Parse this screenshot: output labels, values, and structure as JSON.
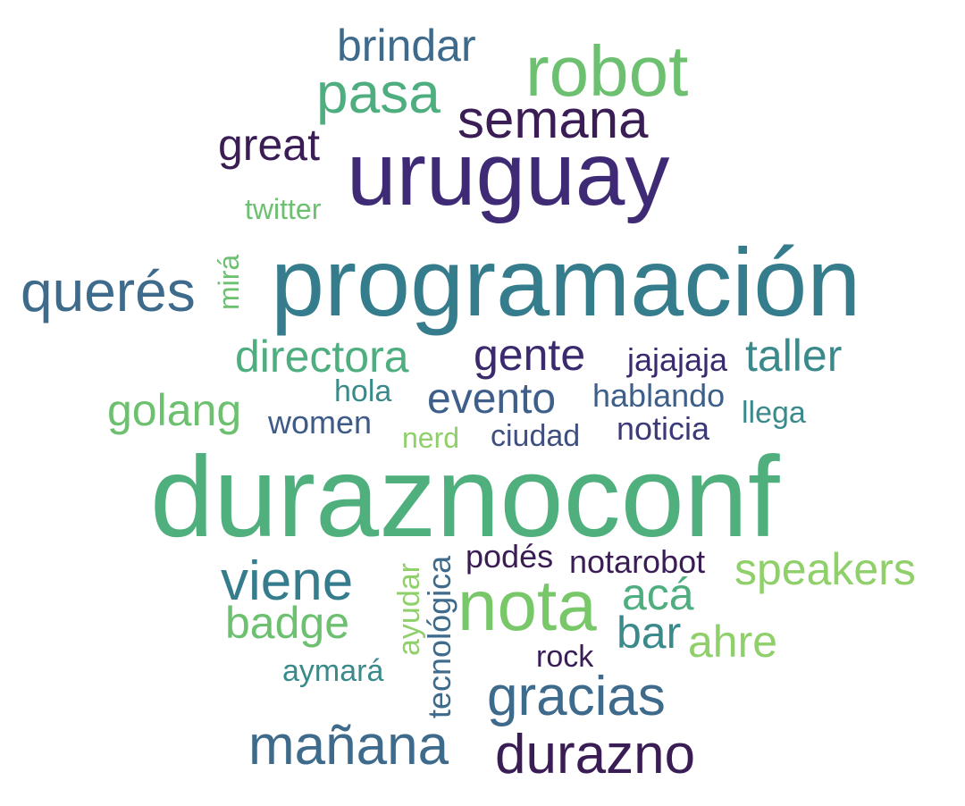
{
  "words": [
    {
      "text": "duraznoconf",
      "color": "#4fb07e"
    },
    {
      "text": "programación",
      "color": "#357c8c"
    },
    {
      "text": "uruguay",
      "color": "#3f2b75"
    },
    {
      "text": "nota",
      "color": "#78c86a"
    },
    {
      "text": "robot",
      "color": "#6cc070"
    },
    {
      "text": "semana",
      "color": "#3b1d55"
    },
    {
      "text": "pasa",
      "color": "#4fae80"
    },
    {
      "text": "brindar",
      "color": "#3e6a8c"
    },
    {
      "text": "great",
      "color": "#3b1d55"
    },
    {
      "text": "twitter",
      "color": "#6cc070"
    },
    {
      "text": "querés",
      "color": "#3e6a8c"
    },
    {
      "text": "mirá",
      "color": "#6cc070"
    },
    {
      "text": "directora",
      "color": "#4fae80"
    },
    {
      "text": "gente",
      "color": "#3b2a6d"
    },
    {
      "text": "jajajaja",
      "color": "#3b2a6d"
    },
    {
      "text": "taller",
      "color": "#3a8a8c"
    },
    {
      "text": "golang",
      "color": "#6cc070"
    },
    {
      "text": "hola",
      "color": "#3a8a8c"
    },
    {
      "text": "evento",
      "color": "#3e5f8a"
    },
    {
      "text": "hablando",
      "color": "#3e5f8a"
    },
    {
      "text": "llega",
      "color": "#3a8a8c"
    },
    {
      "text": "women",
      "color": "#3e5a86"
    },
    {
      "text": "nerd",
      "color": "#8fd06a"
    },
    {
      "text": "ciudad",
      "color": "#3e4f80"
    },
    {
      "text": "noticia",
      "color": "#3b3a78"
    },
    {
      "text": "viene",
      "color": "#357c8c"
    },
    {
      "text": "badge",
      "color": "#6cc070"
    },
    {
      "text": "ayudar",
      "color": "#8fd06a"
    },
    {
      "text": "tecnológica",
      "color": "#3e6a8c"
    },
    {
      "text": "podés",
      "color": "#3b1d55"
    },
    {
      "text": "notarobot",
      "color": "#3b1d55"
    },
    {
      "text": "speakers",
      "color": "#8fd06a"
    },
    {
      "text": "acá",
      "color": "#4fae80"
    },
    {
      "text": "bar",
      "color": "#3a8a8c"
    },
    {
      "text": "ahre",
      "color": "#8fd06a"
    },
    {
      "text": "aymará",
      "color": "#3a8a8c"
    },
    {
      "text": "rock",
      "color": "#3b1d55"
    },
    {
      "text": "gracias",
      "color": "#3e6a8c"
    },
    {
      "text": "mañana",
      "color": "#3e6a8c"
    },
    {
      "text": "durazno",
      "color": "#3b1d55"
    }
  ]
}
